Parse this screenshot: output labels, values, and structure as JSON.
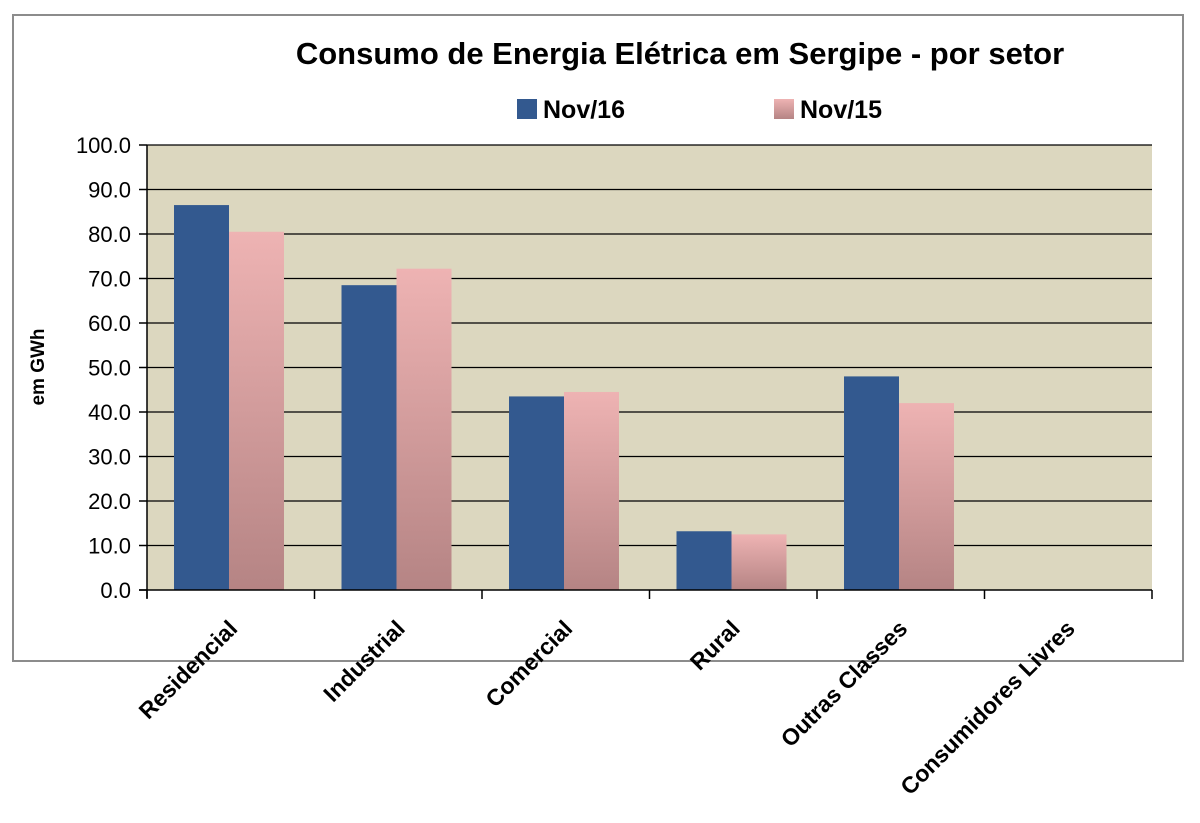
{
  "chart_data": {
    "type": "bar",
    "title": "Consumo de Energia Elétrica em Sergipe - por setor",
    "xlabel": "",
    "ylabel": "em GWh",
    "ylim": [
      0,
      100
    ],
    "yticks": [
      "0.0",
      "10.0",
      "20.0",
      "30.0",
      "40.0",
      "50.0",
      "60.0",
      "70.0",
      "80.0",
      "90.0",
      "100.0"
    ],
    "categories": [
      "Residencial",
      "Industrial",
      "Comercial",
      "Rural",
      "Outras Classes",
      "Consumidores Livres"
    ],
    "series": [
      {
        "name": "Nov/16",
        "values": [
          86.5,
          68.5,
          43.5,
          13.2,
          48.0,
          0
        ]
      },
      {
        "name": "Nov/15",
        "values": [
          80.5,
          72.2,
          44.5,
          12.5,
          42.0,
          0
        ]
      }
    ],
    "legend": "top-center",
    "grid": true
  },
  "colors": {
    "plot_background": "#dcd7bf",
    "gridline": "#000000",
    "series_1": "#33598f",
    "series_2_top": "#eeb3b3",
    "series_2_bottom": "#b58484"
  }
}
